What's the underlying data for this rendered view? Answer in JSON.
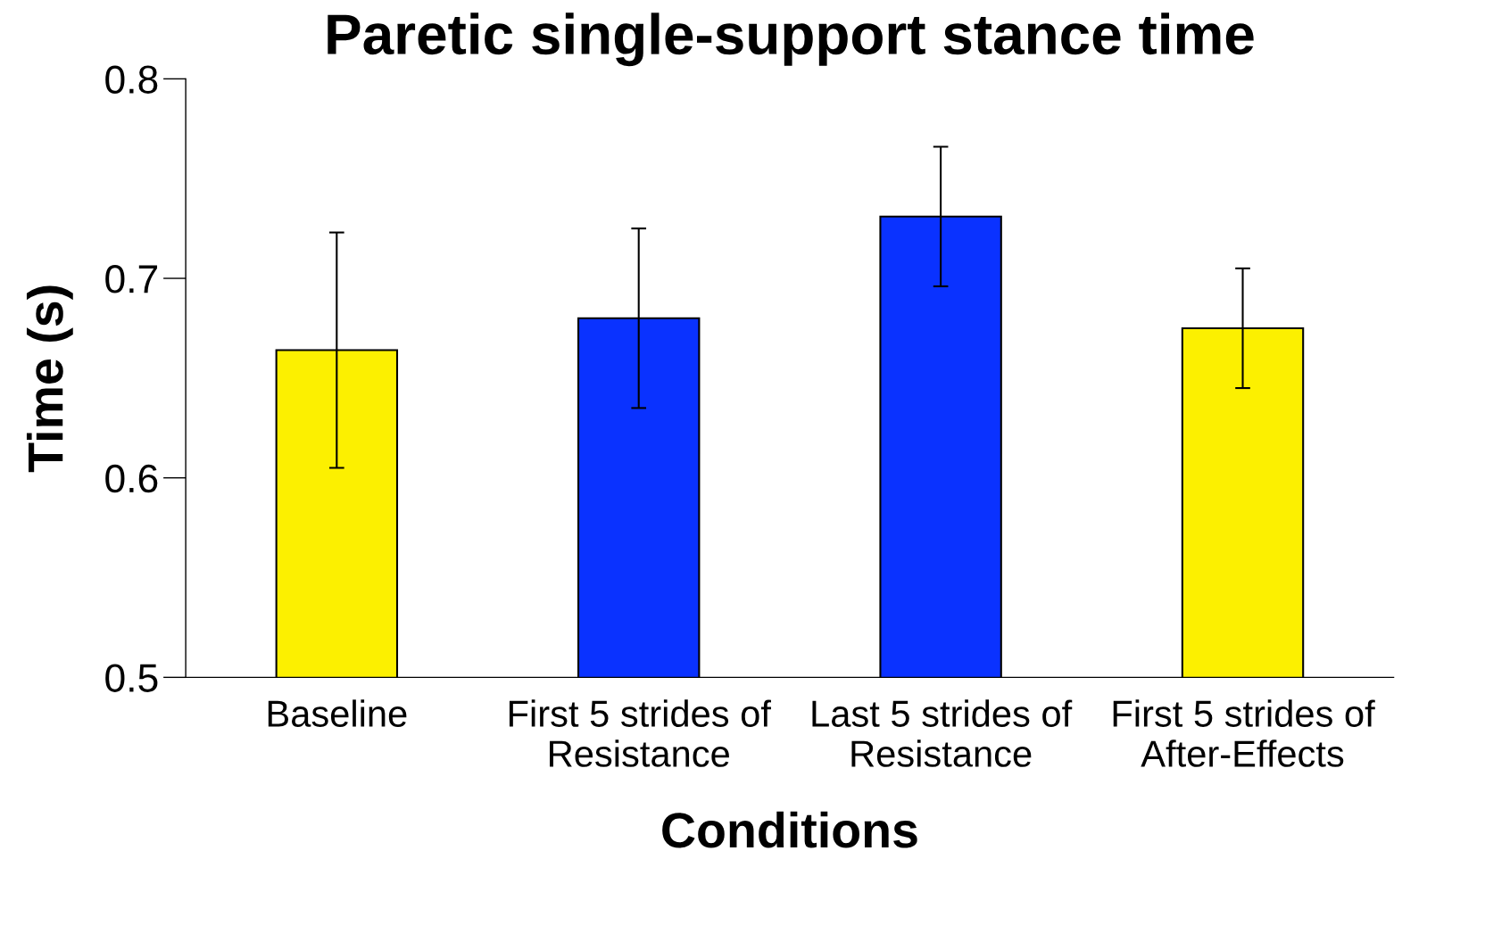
{
  "chart_data": {
    "type": "bar",
    "title": "Paretic single-support stance time",
    "xlabel": "Conditions",
    "ylabel": "Time (s)",
    "categories": [
      "Baseline",
      "First 5 strides of\nResistance",
      "Last 5 strides of\nResistance",
      "First 5 strides of\nAfter-Effects"
    ],
    "values": [
      0.664,
      0.68,
      0.731,
      0.675
    ],
    "errors": [
      0.059,
      0.045,
      0.035,
      0.03
    ],
    "colors": [
      "#fcf000",
      "#0a32ff",
      "#0a32ff",
      "#fcf000"
    ],
    "ylim": [
      0.5,
      0.8
    ],
    "yticks": [
      0.5,
      0.6,
      0.7,
      0.8
    ],
    "grid": false,
    "legend": false
  }
}
